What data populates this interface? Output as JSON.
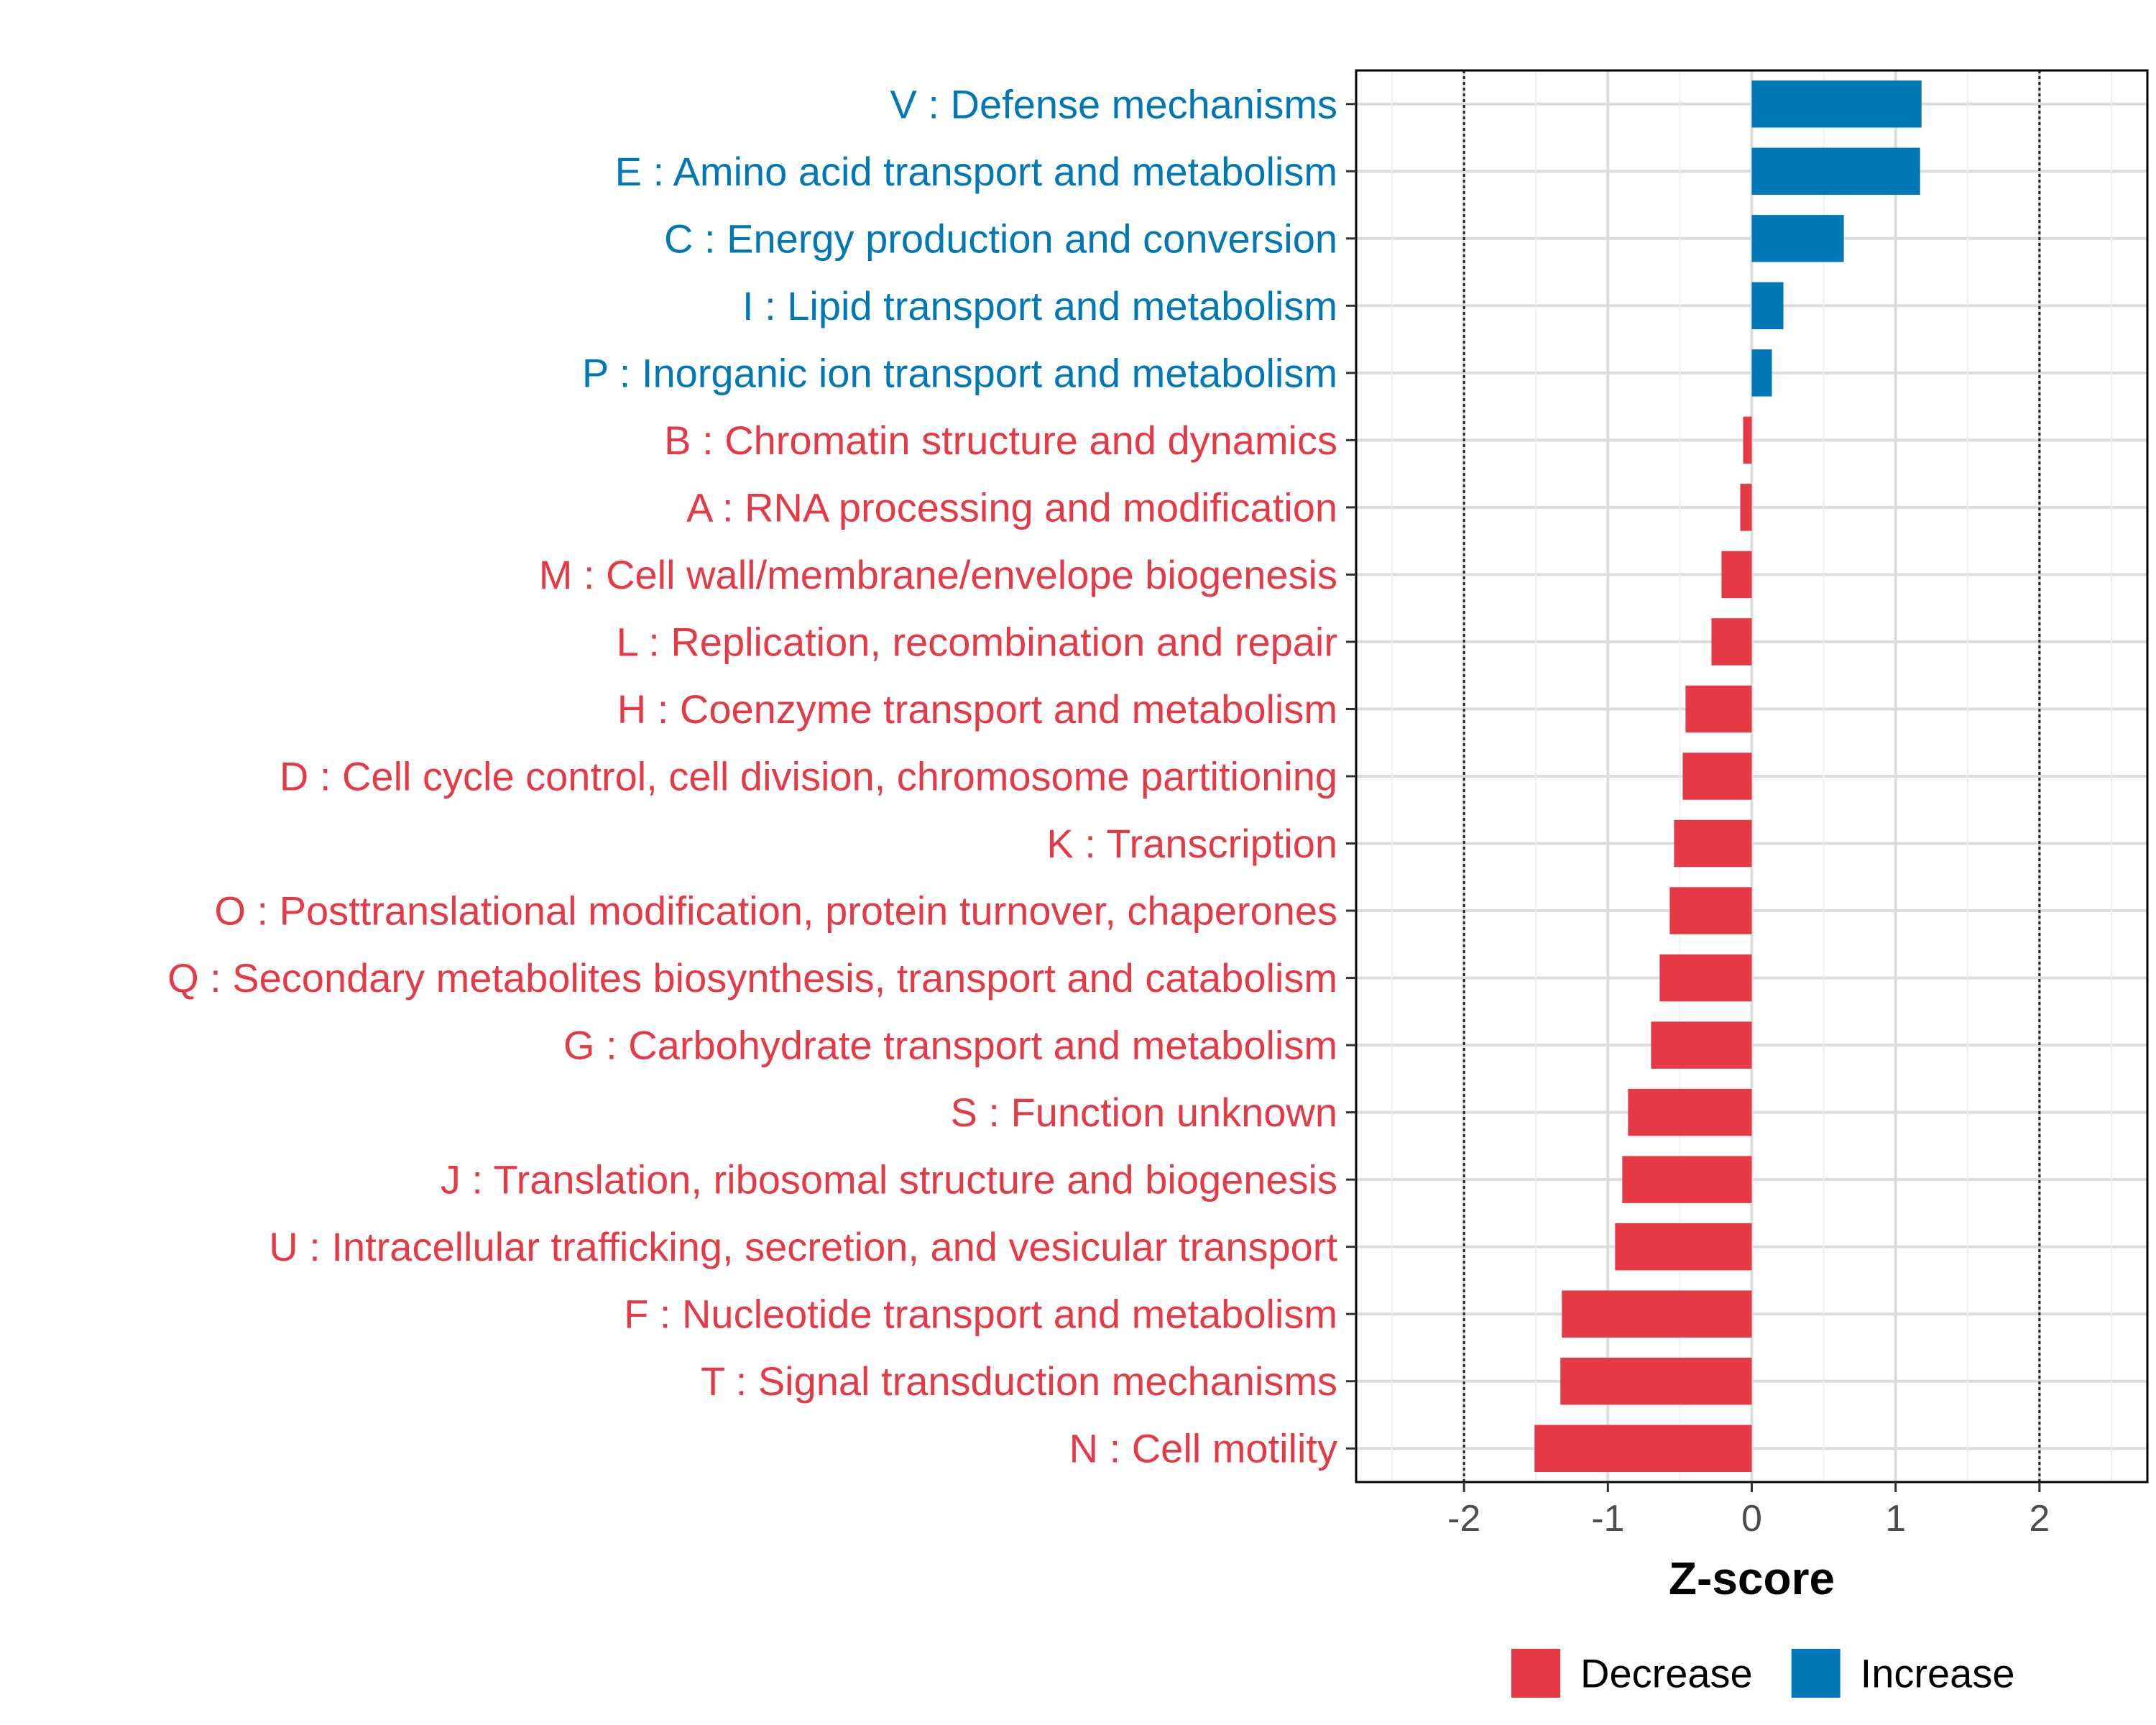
{
  "chart_data": {
    "type": "bar",
    "orientation": "horizontal",
    "xlabel": "Z-score",
    "xlim": [
      -2.75,
      2.75
    ],
    "x_ticks": [
      -2,
      -1,
      0,
      1,
      2
    ],
    "x_tick_labels": [
      "-2",
      "-1",
      "0",
      "1",
      "2"
    ],
    "reference_lines": [
      -2,
      2
    ],
    "colors": {
      "Decrease": "#e63946",
      "Increase": "#0077b6"
    },
    "legend": [
      {
        "name": "Decrease",
        "color": "#e63946"
      },
      {
        "name": "Increase",
        "color": "#0077b6"
      }
    ],
    "categories": [
      "V : Defense mechanisms",
      "E : Amino acid transport and metabolism",
      "C : Energy production and conversion",
      "I : Lipid transport and metabolism",
      "P : Inorganic ion transport and metabolism",
      "B : Chromatin structure and dynamics",
      "A : RNA processing and modification",
      "M : Cell wall/membrane/envelope biogenesis",
      "L : Replication, recombination and repair",
      "H : Coenzyme transport and metabolism",
      "D : Cell cycle control, cell division, chromosome partitioning",
      "K : Transcription",
      "O : Posttranslational modification, protein turnover, chaperones",
      "Q : Secondary metabolites biosynthesis, transport and catabolism",
      "G : Carbohydrate transport and metabolism",
      "S : Function unknown",
      "J : Translation, ribosomal structure and biogenesis",
      "U : Intracellular trafficking, secretion, and vesicular transport",
      "F : Nucleotide transport and metabolism",
      "T : Signal transduction mechanisms",
      "N : Cell motility"
    ],
    "values": [
      1.18,
      1.17,
      0.64,
      0.22,
      0.14,
      -0.06,
      -0.08,
      -0.21,
      -0.28,
      -0.46,
      -0.48,
      -0.54,
      -0.57,
      -0.64,
      -0.7,
      -0.86,
      -0.9,
      -0.95,
      -1.32,
      -1.33,
      -1.51
    ],
    "groups": [
      "Increase",
      "Increase",
      "Increase",
      "Increase",
      "Increase",
      "Decrease",
      "Decrease",
      "Decrease",
      "Decrease",
      "Decrease",
      "Decrease",
      "Decrease",
      "Decrease",
      "Decrease",
      "Decrease",
      "Decrease",
      "Decrease",
      "Decrease",
      "Decrease",
      "Decrease",
      "Decrease"
    ]
  }
}
